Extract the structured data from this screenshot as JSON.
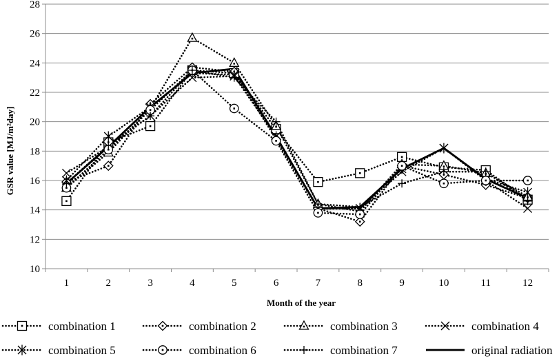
{
  "chart_data": {
    "type": "line",
    "xlabel": "Month of the year",
    "ylabel": "GSR value [MJ/m²day]",
    "categories": [
      "1",
      "2",
      "3",
      "4",
      "5",
      "6",
      "7",
      "8",
      "9",
      "10",
      "11",
      "12"
    ],
    "ylim": [
      10,
      28
    ],
    "yticks": [
      10,
      12,
      14,
      16,
      18,
      20,
      22,
      24,
      26,
      28
    ],
    "grid": "horizontal",
    "legend_position": "bottom",
    "series": [
      {
        "name": "combination 1",
        "marker": "square",
        "style": "dotted",
        "values": [
          14.6,
          18.6,
          19.7,
          23.5,
          23.3,
          19.5,
          15.9,
          16.5,
          17.6,
          16.9,
          16.7,
          14.7
        ]
      },
      {
        "name": "combination 2",
        "marker": "diamond",
        "style": "dotted",
        "values": [
          15.9,
          17.0,
          21.2,
          23.7,
          23.4,
          18.8,
          14.1,
          13.2,
          17.0,
          16.4,
          15.7,
          14.8
        ]
      },
      {
        "name": "combination 3",
        "marker": "triangle",
        "style": "dotted",
        "values": [
          15.5,
          17.9,
          20.9,
          25.7,
          24.0,
          19.7,
          14.4,
          13.9,
          17.1,
          17.0,
          16.5,
          14.9
        ]
      },
      {
        "name": "combination 4",
        "marker": "x",
        "style": "dotted",
        "values": [
          16.5,
          18.3,
          20.4,
          23.0,
          23.1,
          19.0,
          14.1,
          14.1,
          16.6,
          18.2,
          16.0,
          14.1
        ]
      },
      {
        "name": "combination 5",
        "marker": "asterisk",
        "style": "dotted",
        "values": [
          16.0,
          19.0,
          21.0,
          23.3,
          23.2,
          19.0,
          14.1,
          14.1,
          16.8,
          18.2,
          16.1,
          15.2
        ]
      },
      {
        "name": "combination 6",
        "marker": "circle",
        "style": "dotted",
        "values": [
          15.5,
          18.1,
          20.8,
          23.5,
          20.9,
          18.7,
          13.8,
          13.7,
          17.0,
          15.8,
          16.0,
          16.0
        ]
      },
      {
        "name": "combination 7",
        "marker": "plus",
        "style": "dotted",
        "values": [
          15.8,
          18.4,
          20.4,
          23.5,
          23.0,
          20.0,
          14.4,
          14.2,
          15.8,
          16.6,
          16.6,
          14.6
        ]
      },
      {
        "name": "original radiation",
        "marker": "none",
        "style": "solid",
        "values": [
          15.8,
          18.3,
          21.0,
          23.3,
          23.6,
          19.0,
          14.1,
          14.2,
          16.8,
          18.2,
          16.1,
          14.8
        ]
      }
    ]
  }
}
